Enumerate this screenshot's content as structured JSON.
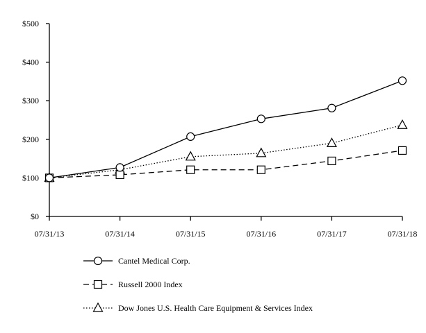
{
  "chart_data": {
    "type": "line",
    "title": "",
    "xlabel": "",
    "ylabel": "",
    "categories": [
      "07/31/13",
      "07/31/14",
      "07/31/15",
      "07/31/16",
      "07/31/17",
      "07/31/18"
    ],
    "y_ticks": [
      "$0",
      "$100",
      "$200",
      "$300",
      "$400",
      "$500"
    ],
    "ylim": [
      0,
      500
    ],
    "grid": false,
    "legend_position": "bottom",
    "series": [
      {
        "name": "Cantel Medical Corp.",
        "marker": "circle",
        "line_style": "solid",
        "values": [
          100,
          127,
          207,
          253,
          281,
          352
        ]
      },
      {
        "name": "Russell 2000 Index",
        "marker": "square",
        "line_style": "dashed",
        "values": [
          100,
          108,
          121,
          121,
          144,
          171
        ]
      },
      {
        "name": "Dow Jones U.S. Health Care Equipment & Services Index",
        "marker": "triangle",
        "line_style": "dotted",
        "values": [
          100,
          121,
          155,
          164,
          190,
          237
        ]
      }
    ]
  }
}
